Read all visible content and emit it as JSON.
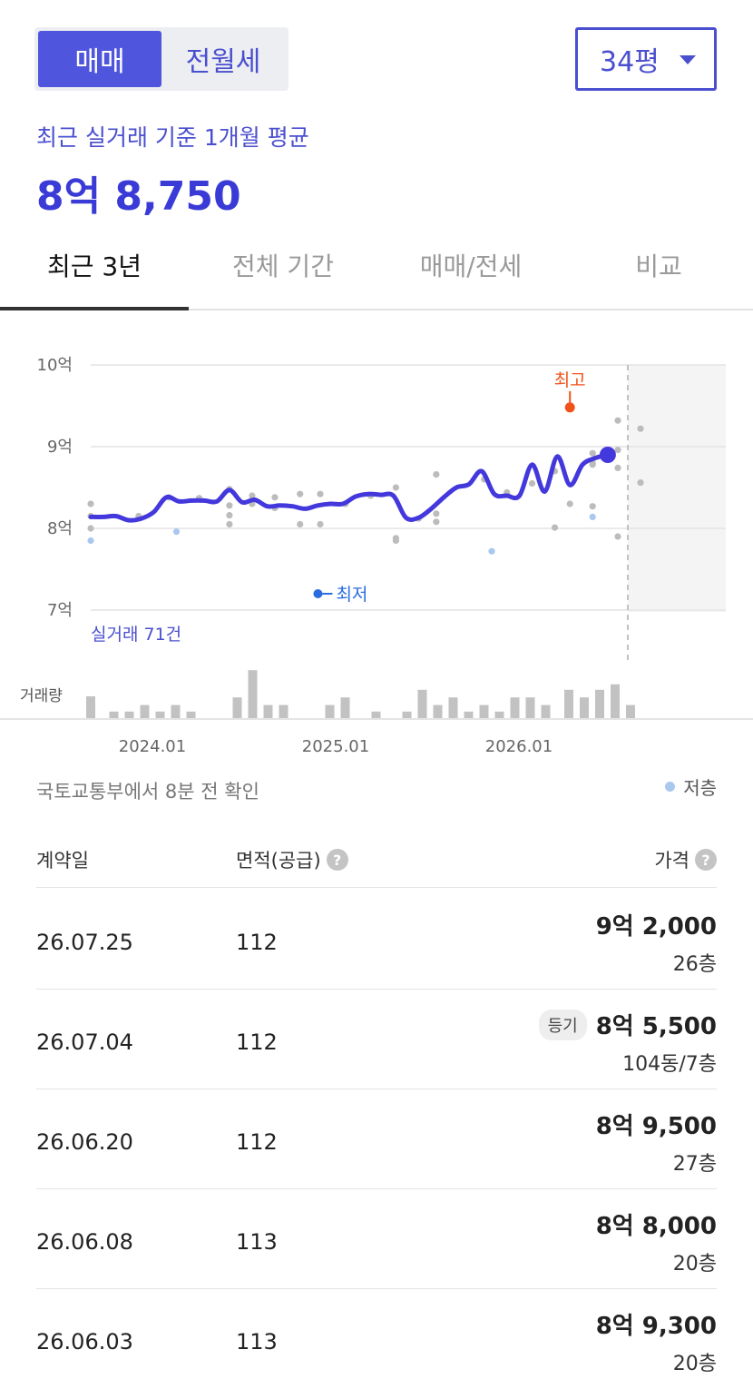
{
  "toggle": {
    "active": "매매",
    "inactive": "전월세"
  },
  "size_select": {
    "value": "34평"
  },
  "summary": {
    "label": "최근 실거래 기준 1개월 평균",
    "price": "8억 8,750"
  },
  "tabs": [
    {
      "label": "최근 3년"
    },
    {
      "label": "전체 기간"
    },
    {
      "label": "매매/전세"
    },
    {
      "label": "비교"
    }
  ],
  "chart_data": {
    "type": "line",
    "y_tick_labels": [
      "10억",
      "9억",
      "8억",
      "7억"
    ],
    "ylim": [
      7,
      10
    ],
    "x_tick_labels": [
      "2024.01",
      "2025.01",
      "2026.01"
    ],
    "annotations": {
      "high": "최고",
      "low": "최저",
      "count": "실거래 71건",
      "volume_label": "거래량"
    },
    "trend": [
      [
        0,
        8.14
      ],
      [
        0.5,
        8.14
      ],
      [
        1,
        8.15
      ],
      [
        1.5,
        8.1
      ],
      [
        2,
        8.12
      ],
      [
        2.5,
        8.2
      ],
      [
        3,
        8.38
      ],
      [
        3.5,
        8.33
      ],
      [
        4,
        8.34
      ],
      [
        4.5,
        8.34
      ],
      [
        5,
        8.33
      ],
      [
        5.5,
        8.47
      ],
      [
        6,
        8.32
      ],
      [
        6.5,
        8.35
      ],
      [
        7,
        8.27
      ],
      [
        7.5,
        8.28
      ],
      [
        8,
        8.27
      ],
      [
        8.5,
        8.24
      ],
      [
        9,
        8.28
      ],
      [
        9.5,
        8.3
      ],
      [
        10,
        8.3
      ],
      [
        10.5,
        8.39
      ],
      [
        11,
        8.42
      ],
      [
        11.5,
        8.41
      ],
      [
        12,
        8.4
      ],
      [
        12.5,
        8.13
      ],
      [
        13,
        8.13
      ],
      [
        13.5,
        8.24
      ],
      [
        14,
        8.38
      ],
      [
        14.5,
        8.5
      ],
      [
        15,
        8.54
      ],
      [
        15.5,
        8.7
      ],
      [
        16,
        8.42
      ],
      [
        16.5,
        8.4
      ],
      [
        17,
        8.4
      ],
      [
        17.5,
        8.78
      ],
      [
        18,
        8.45
      ],
      [
        18.5,
        8.88
      ],
      [
        19,
        8.53
      ],
      [
        19.5,
        8.78
      ],
      [
        20,
        8.86
      ],
      [
        20.5,
        8.9
      ]
    ],
    "last_point": [
      20.5,
      8.9
    ],
    "high_point": [
      19,
      9.48
    ],
    "low_point": [
      9.8,
      7.2
    ],
    "trades": [
      [
        0,
        8.3
      ],
      [
        0,
        8.0
      ],
      [
        0,
        8.15
      ],
      [
        1.9,
        8.15
      ],
      [
        3.1,
        8.38
      ],
      [
        4.3,
        8.37
      ],
      [
        5.5,
        8.48
      ],
      [
        5.5,
        8.16
      ],
      [
        5.5,
        8.05
      ],
      [
        5.5,
        8.28
      ],
      [
        6.4,
        8.4
      ],
      [
        6.4,
        8.3
      ],
      [
        7.3,
        8.38
      ],
      [
        7.3,
        8.25
      ],
      [
        8.3,
        8.42
      ],
      [
        8.3,
        8.05
      ],
      [
        9.1,
        8.42
      ],
      [
        9.1,
        8.05
      ],
      [
        10.1,
        8.3
      ],
      [
        11.1,
        8.4
      ],
      [
        12.1,
        8.5
      ],
      [
        12.1,
        7.88
      ],
      [
        12.1,
        7.85
      ],
      [
        13,
        8.12
      ],
      [
        13.7,
        8.18
      ],
      [
        13.7,
        8.08
      ],
      [
        13.7,
        8.66
      ],
      [
        15.6,
        8.6
      ],
      [
        16.5,
        8.44
      ],
      [
        17.5,
        8.55
      ],
      [
        18.4,
        8.7
      ],
      [
        18.4,
        8.01
      ],
      [
        19,
        8.3
      ],
      [
        19.9,
        8.92
      ],
      [
        19.9,
        8.78
      ],
      [
        19.9,
        8.27
      ],
      [
        19.9,
        8.8
      ],
      [
        20.9,
        9.32
      ],
      [
        20.9,
        8.96
      ],
      [
        20.9,
        7.9
      ],
      [
        20.9,
        8.74
      ],
      [
        21.8,
        9.22
      ],
      [
        21.8,
        8.56
      ]
    ],
    "trades_low_floor": [
      [
        0,
        7.85
      ],
      [
        3.4,
        7.96
      ],
      [
        15.9,
        7.72
      ],
      [
        19.9,
        8.14
      ]
    ],
    "volume": [
      [
        0,
        4
      ],
      [
        1.5,
        1.2
      ],
      [
        2.5,
        1.2
      ],
      [
        3.5,
        2.4
      ],
      [
        4.5,
        1.2
      ],
      [
        5.5,
        2.4
      ],
      [
        6.5,
        1.2
      ],
      [
        9.5,
        3.8
      ],
      [
        10.5,
        8.8
      ],
      [
        11.5,
        2.4
      ],
      [
        12.5,
        2.4
      ],
      [
        15.5,
        2.4
      ],
      [
        16.5,
        3.8
      ],
      [
        18.5,
        1.2
      ],
      [
        20.5,
        1.2
      ],
      [
        21.5,
        5.2
      ],
      [
        22.5,
        2.4
      ],
      [
        23.5,
        3.8
      ],
      [
        24.5,
        1.2
      ],
      [
        25.5,
        2.4
      ],
      [
        26.5,
        1.2
      ],
      [
        27.5,
        3.8
      ],
      [
        28.5,
        3.8
      ],
      [
        29.5,
        2.4
      ],
      [
        31,
        5.2
      ],
      [
        32,
        3.8
      ],
      [
        33,
        5.2
      ],
      [
        34,
        6.2
      ],
      [
        35,
        2.4
      ]
    ]
  },
  "source_note": "국토교통부에서 8분 전 확인",
  "legend": {
    "low_floor": "저층"
  },
  "table": {
    "headers": {
      "date": "계약일",
      "area": "면적(공급)",
      "price": "가격"
    },
    "rows": [
      {
        "date": "26.07.25",
        "area": "112",
        "price": "9억 2,000",
        "floor": "26층",
        "badge": ""
      },
      {
        "date": "26.07.04",
        "area": "112",
        "price": "8억 5,500",
        "floor": "104동/7층",
        "badge": "등기"
      },
      {
        "date": "26.06.20",
        "area": "112",
        "price": "8억 9,500",
        "floor": "27층",
        "badge": ""
      },
      {
        "date": "26.06.08",
        "area": "113",
        "price": "8억 8,000",
        "floor": "20층",
        "badge": ""
      },
      {
        "date": "26.06.03",
        "area": "113",
        "price": "8억 9,300",
        "floor": "20층",
        "badge": ""
      }
    ]
  }
}
